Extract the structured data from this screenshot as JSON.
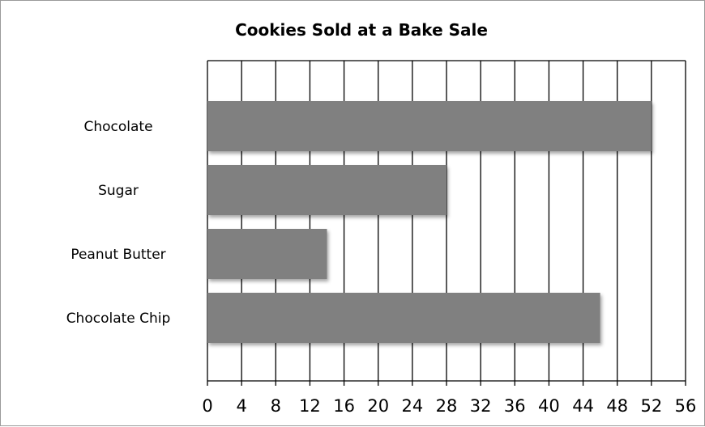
{
  "chart_data": {
    "type": "bar",
    "orientation": "horizontal",
    "title": "Cookies Sold at a Bake Sale",
    "xlabel": "",
    "ylabel": "",
    "categories": [
      "Chocolate",
      "Sugar",
      "Peanut Butter",
      "Chocolate Chip"
    ],
    "values": [
      52,
      28,
      14,
      46
    ],
    "xlim": [
      0,
      56
    ],
    "ticks": [
      0,
      4,
      8,
      12,
      16,
      20,
      24,
      28,
      32,
      36,
      40,
      44,
      48,
      52,
      56
    ],
    "grid": "vertical",
    "legend": "none",
    "bar_color": "#808080"
  }
}
